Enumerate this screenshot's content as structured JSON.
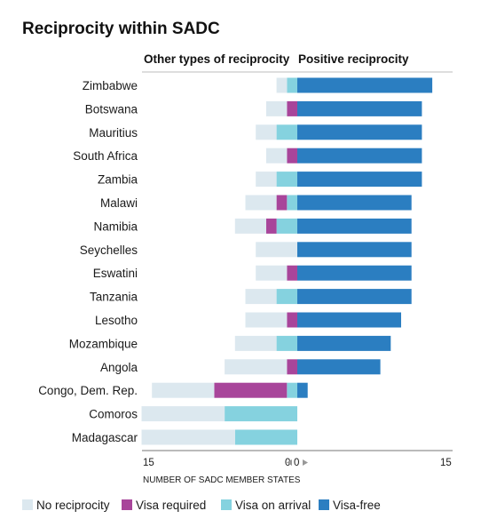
{
  "chart_data": {
    "type": "bar",
    "orientation": "horizontal-diverging",
    "title": "Reciprocity within SADC",
    "left_header": "Other types of reciprocity",
    "right_header": "Positive reciprocity",
    "xlabel": "NUMBER OF SADC MEMBER STATES",
    "xlim_left": [
      15,
      0
    ],
    "xlim_right": [
      0,
      15
    ],
    "tick_labels": {
      "left": "15",
      "left_zero": "0",
      "right_zero": "0",
      "right": "15"
    },
    "categories": [
      "Zimbabwe",
      "Botswana",
      "Mauritius",
      "South Africa",
      "Zambia",
      "Malawi",
      "Namibia",
      "Seychelles",
      "Eswatini",
      "Tanzania",
      "Lesotho",
      "Mozambique",
      "Angola",
      "Congo, Dem. Rep.",
      "Comoros",
      "Madagascar"
    ],
    "series": [
      {
        "name": "No reciprocity",
        "key": "none",
        "color": "#dce8ef",
        "side": "left",
        "values": [
          1,
          2,
          2,
          2,
          2,
          3,
          3,
          4,
          3,
          3,
          4,
          4,
          6,
          6,
          8,
          9
        ]
      },
      {
        "name": "Visa required",
        "key": "req",
        "color": "#a8459a",
        "side": "left",
        "values": [
          0,
          1,
          0,
          1,
          0,
          1,
          1,
          0,
          1,
          0,
          1,
          0,
          1,
          7,
          0,
          0
        ]
      },
      {
        "name": "Visa on arrival",
        "key": "voa",
        "color": "#85d2df",
        "side": "left",
        "values": [
          1,
          0,
          2,
          0,
          2,
          1,
          2,
          0,
          0,
          2,
          0,
          2,
          0,
          1,
          7,
          6
        ]
      },
      {
        "name": "Visa-free",
        "key": "free",
        "color": "#2b7ec1",
        "side": "right",
        "values": [
          13,
          12,
          12,
          12,
          12,
          11,
          11,
          11,
          11,
          11,
          10,
          9,
          8,
          1,
          0,
          0
        ]
      }
    ],
    "legend_position": "bottom",
    "grid": false
  }
}
